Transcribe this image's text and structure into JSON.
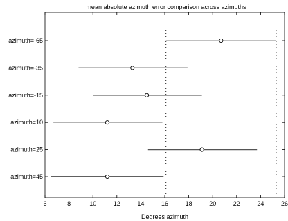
{
  "chart_data": {
    "type": "interval",
    "title": "mean absolute azimuth error comparison across azimuths",
    "xlabel": "Degrees azimuth",
    "ylabel": "",
    "xlim": [
      6,
      26
    ],
    "xticks": [
      6,
      8,
      10,
      12,
      14,
      16,
      18,
      20,
      22,
      24,
      26
    ],
    "grid": false,
    "categories": [
      "azimuth=-65",
      "azimuth=-35",
      "azimuth=-15",
      "azimuth=10",
      "azimuth=25",
      "azimuth=45"
    ],
    "intervals": [
      {
        "label": "azimuth=-65",
        "center": 20.7,
        "low": 16.1,
        "high": 25.3,
        "color": "#9a9a9a"
      },
      {
        "label": "azimuth=-35",
        "center": 13.3,
        "low": 8.8,
        "high": 17.9,
        "color": "#000000"
      },
      {
        "label": "azimuth=-15",
        "center": 14.5,
        "low": 10.0,
        "high": 19.1,
        "color": "#000000"
      },
      {
        "label": "azimuth=10",
        "center": 11.2,
        "low": 6.7,
        "high": 15.8,
        "color": "#9a9a9a"
      },
      {
        "label": "azimuth=25",
        "center": 19.1,
        "low": 14.6,
        "high": 23.7,
        "color": "#555555"
      },
      {
        "label": "azimuth=45",
        "center": 11.2,
        "low": 6.5,
        "high": 15.9,
        "color": "#000000"
      }
    ],
    "reference_lines": [
      16.1,
      25.3
    ]
  }
}
